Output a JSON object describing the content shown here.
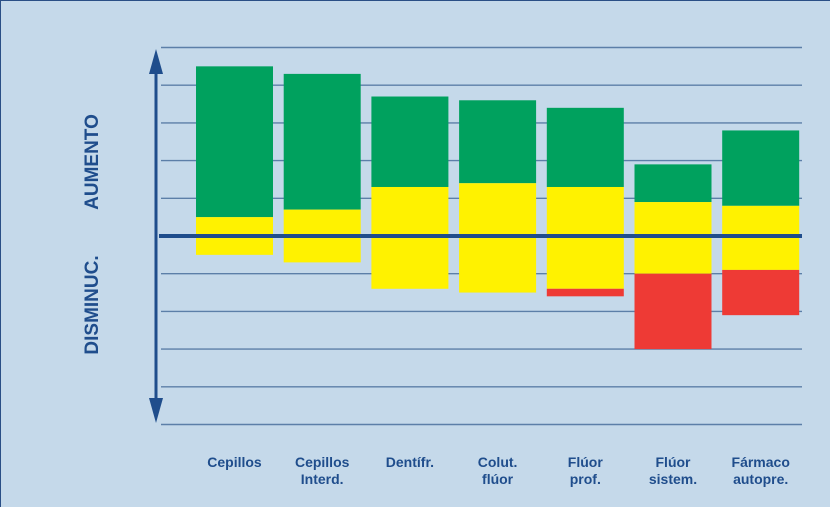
{
  "chart_data": {
    "type": "bar",
    "stacked": true,
    "title": "",
    "y_axis_labels": {
      "up": "AUMENTO",
      "down": "DISMINUC."
    },
    "categories": [
      [
        "Cepillos"
      ],
      [
        "Cepillos",
        "Interd."
      ],
      [
        "Dentífr."
      ],
      [
        "Colut.",
        "flúor"
      ],
      [
        "Flúor",
        "prof."
      ],
      [
        "Flúor",
        "sistem."
      ],
      [
        "Fármaco",
        "autopre."
      ]
    ],
    "ylim": [
      -5,
      5
    ],
    "grid": true,
    "colors": {
      "green": "#00a15e",
      "yellow": "#fff200",
      "red": "#ee3a35",
      "axis": "#1f4d8c",
      "grid": "#5c7fa8",
      "background": "#c5d9ea"
    },
    "segments": [
      {
        "color": "green",
        "values": [
          [
            0.5,
            4.5
          ],
          [
            0.7,
            4.3
          ],
          [
            1.3,
            3.7
          ],
          [
            1.4,
            3.6
          ],
          [
            1.3,
            3.4
          ],
          [
            0.9,
            1.9
          ],
          [
            0.8,
            2.8
          ]
        ]
      },
      {
        "color": "yellow",
        "values": [
          [
            -0.5,
            0.5
          ],
          [
            -0.7,
            0.7
          ],
          [
            -1.4,
            1.3
          ],
          [
            -1.5,
            1.4
          ],
          [
            -1.4,
            1.3
          ],
          [
            -1.0,
            0.9
          ],
          [
            -0.9,
            0.8
          ]
        ]
      },
      {
        "color": "red",
        "values": [
          null,
          null,
          null,
          null,
          [
            -1.6,
            -1.4
          ],
          [
            -3.0,
            -1.0
          ],
          [
            -2.1,
            -0.9
          ]
        ]
      }
    ]
  }
}
